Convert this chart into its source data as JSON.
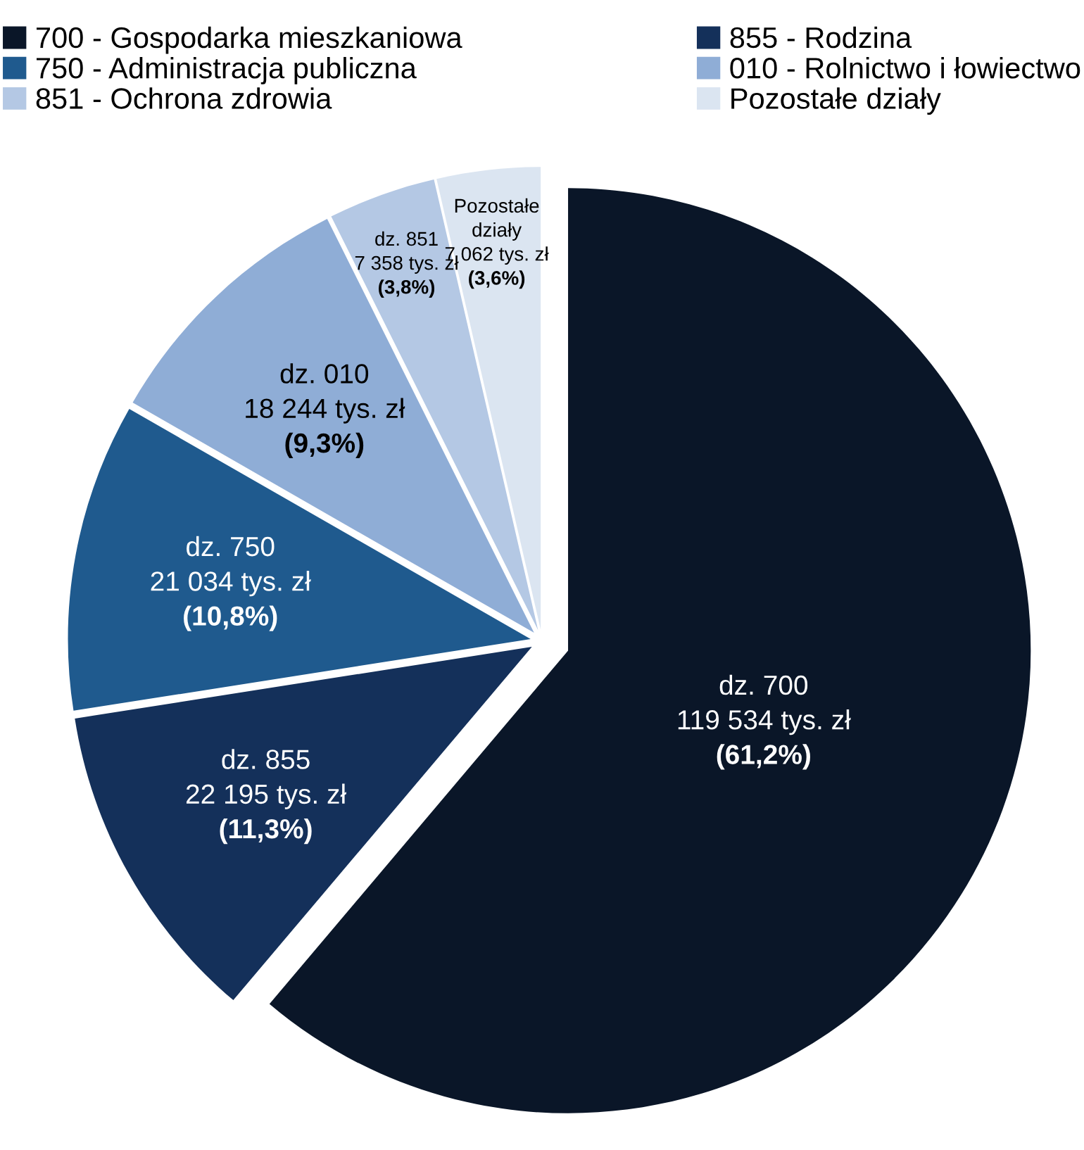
{
  "chart_data": {
    "type": "pie",
    "categories": [
      "700 - Gospodarka mieszkaniowa",
      "855 - Rodzina",
      "750 - Administracja publiczna",
      "010 - Rolnictwo i łowiectwo",
      "851 - Ochrona zdrowia",
      "Pozostałe działy"
    ],
    "values": [
      119534,
      22195,
      21034,
      18244,
      7358,
      7062
    ],
    "colors": [
      "#0a1628",
      "#14305a",
      "#1f5a8e",
      "#8fadd6",
      "#b4c8e4",
      "#dbe5f1"
    ],
    "value_labels": [
      "dz. 700\n119 534 tys. zł\n(61,2%)",
      "dz. 855\n22 195 tys. zł\n(11,3%)",
      "dz. 750\n21 034 tys. zł\n(10,8%)",
      "dz. 010\n18 244 tys. zł\n(9,3%)",
      "dz. 851\n7 358 tys. zł\n(3,8%)",
      "Pozostałe\ndziały\n7 062 tys. zł\n(3,6%)"
    ],
    "legend": "top"
  }
}
